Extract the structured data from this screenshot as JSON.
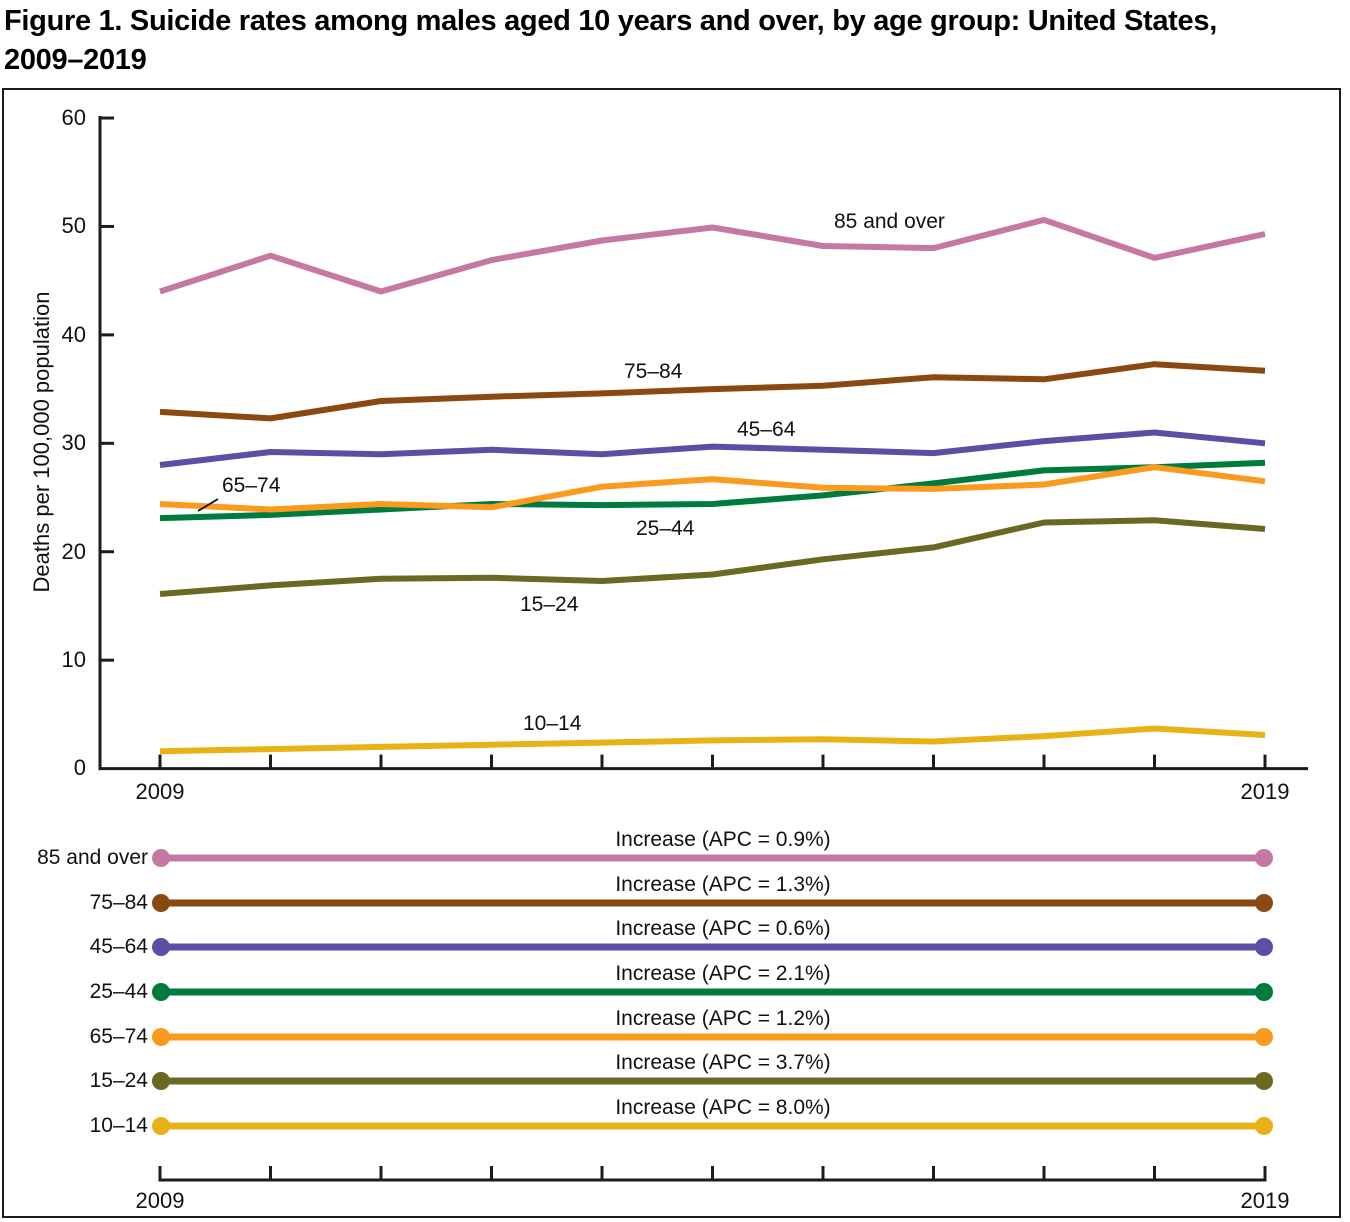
{
  "title": {
    "line1": "Figure 1. Suicide rates among males aged 10 years and over, by age group: United States,",
    "line2": "2009–2019"
  },
  "chart_data": {
    "type": "line",
    "title": "Figure 1. Suicide rates among males aged 10 years and over, by age group: United States, 2009–2019",
    "ylabel": "Deaths per 100,000 population",
    "ylim": [
      0,
      60
    ],
    "yticks": [
      0,
      10,
      20,
      30,
      40,
      50,
      60
    ],
    "x": [
      2009,
      2010,
      2011,
      2012,
      2013,
      2014,
      2015,
      2016,
      2017,
      2018,
      2019
    ],
    "x_tick_labels_shown": [
      "2009",
      "2019"
    ],
    "grid": false,
    "legend_position": "bottom-panel",
    "series": [
      {
        "name": "85 and over",
        "color": "#c678a4",
        "values": [
          44.0,
          47.3,
          44.0,
          46.9,
          48.7,
          49.9,
          48.2,
          48.0,
          50.6,
          47.1,
          49.3
        ]
      },
      {
        "name": "75–84",
        "color": "#8a4911",
        "values": [
          32.9,
          32.3,
          33.9,
          34.3,
          34.6,
          35.0,
          35.3,
          36.1,
          35.9,
          37.3,
          36.7
        ]
      },
      {
        "name": "45–64",
        "color": "#5a4fa5",
        "values": [
          28.0,
          29.2,
          29.0,
          29.4,
          29.0,
          29.7,
          29.4,
          29.1,
          30.2,
          31.0,
          30.0
        ]
      },
      {
        "name": "25–44",
        "color": "#007b3e",
        "values": [
          23.1,
          23.4,
          23.9,
          24.4,
          24.3,
          24.4,
          25.2,
          26.3,
          27.5,
          27.8,
          28.2
        ]
      },
      {
        "name": "65–74",
        "color": "#fa9a1e",
        "values": [
          24.4,
          23.9,
          24.4,
          24.1,
          26.0,
          26.7,
          25.9,
          25.8,
          26.2,
          27.8,
          26.5
        ]
      },
      {
        "name": "15–24",
        "color": "#6a6921",
        "values": [
          16.1,
          16.9,
          17.5,
          17.6,
          17.3,
          17.9,
          19.3,
          20.4,
          22.7,
          22.9,
          22.1
        ]
      },
      {
        "name": "10–14",
        "color": "#e8b217",
        "values": [
          1.6,
          1.8,
          2.0,
          2.2,
          2.4,
          2.6,
          2.7,
          2.5,
          3.0,
          3.7,
          3.1
        ]
      }
    ]
  },
  "x_axis": {
    "start_label": "2009",
    "end_label": "2019"
  },
  "legend": {
    "rows": [
      {
        "age": "85 and over",
        "apc_label": "Increase (APC = 0.9%)",
        "color": "#c678a4"
      },
      {
        "age": "75–84",
        "apc_label": "Increase (APC = 1.3%)",
        "color": "#8a4911"
      },
      {
        "age": "45–64",
        "apc_label": "Increase (APC = 0.6%)",
        "color": "#5a4fa5"
      },
      {
        "age": "25–44",
        "apc_label": "Increase (APC = 2.1%)",
        "color": "#007b3e"
      },
      {
        "age": "65–74",
        "apc_label": "Increase (APC = 1.2%)",
        "color": "#fa9a1e"
      },
      {
        "age": "15–24",
        "apc_label": "Increase (APC = 3.7%)",
        "color": "#6a6921"
      },
      {
        "age": "10–14",
        "apc_label": "Increase (APC = 8.0%)",
        "color": "#e8b217"
      }
    ]
  }
}
